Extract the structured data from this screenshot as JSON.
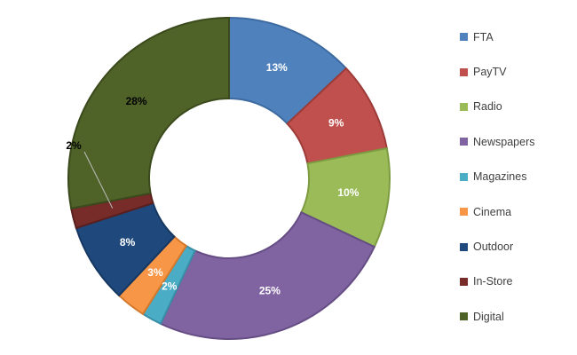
{
  "chart_data": {
    "type": "pie",
    "donut": true,
    "start_angle_deg": 0,
    "direction": "clockwise",
    "legend_position": "right",
    "slices": [
      {
        "name": "FTA",
        "value": 13,
        "label": "13%",
        "color": "#4f81bd",
        "edge": "#3d6aa0",
        "label_color": "#ffffff"
      },
      {
        "name": "PayTV",
        "value": 9,
        "label": "9%",
        "color": "#c0504d",
        "edge": "#9c3b38",
        "label_color": "#ffffff"
      },
      {
        "name": "Radio",
        "value": 10,
        "label": "10%",
        "color": "#9bbb59",
        "edge": "#7d9c41",
        "label_color": "#ffffff"
      },
      {
        "name": "Newspapers",
        "value": 25,
        "label": "25%",
        "color": "#8064a2",
        "edge": "#654d84",
        "label_color": "#ffffff"
      },
      {
        "name": "Magazines",
        "value": 2,
        "label": "2%",
        "color": "#4bacc6",
        "edge": "#378ea6",
        "label_color": "#ffffff"
      },
      {
        "name": "Cinema",
        "value": 3,
        "label": "3%",
        "color": "#f79646",
        "edge": "#d4782c",
        "label_color": "#ffffff"
      },
      {
        "name": "Outdoor",
        "value": 8,
        "label": "8%",
        "color": "#1f497d",
        "edge": "#163761",
        "label_color": "#ffffff"
      },
      {
        "name": "In-Store",
        "value": 2,
        "label": "2%",
        "color": "#772c2a",
        "edge": "#5a1f1d",
        "label_color": "#000000",
        "leader_line": true
      },
      {
        "name": "Digital",
        "value": 28,
        "label": "28%",
        "color": "#4f6228",
        "edge": "#3b4a1c",
        "label_color": "#000000"
      }
    ]
  }
}
